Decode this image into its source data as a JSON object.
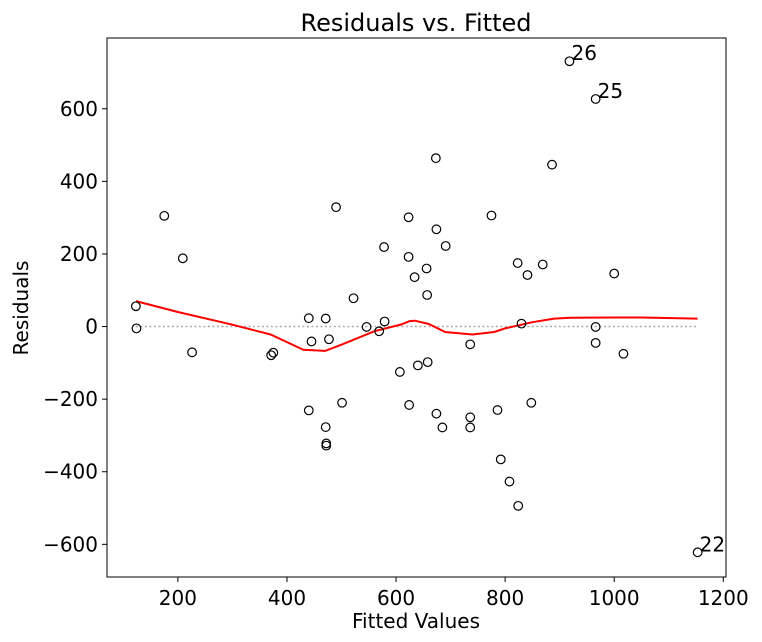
{
  "chart_data": {
    "type": "scatter",
    "title": "Residuals vs. Fitted",
    "xlabel": "Fitted Values",
    "ylabel": "Residuals",
    "xlim": [
      70,
      1205
    ],
    "ylim": [
      -690,
      795
    ],
    "xticks": [
      200,
      400,
      600,
      800,
      1000,
      1200
    ],
    "yticks": [
      -600,
      -400,
      -200,
      0,
      200,
      400,
      600
    ],
    "xtick_labels": [
      "200",
      "400",
      "600",
      "800",
      "1000",
      "1200"
    ],
    "ytick_labels": [
      "−600",
      "−400",
      "−200",
      "0",
      "200",
      "400",
      "600"
    ],
    "grid": false,
    "reference_line": {
      "y": 0,
      "style": "dotted",
      "color": "#aaaaaa"
    },
    "colors": {
      "points": "#000000",
      "smooth": "#ff0000"
    },
    "points": [
      {
        "x": 123,
        "y": 56
      },
      {
        "x": 124,
        "y": -5
      },
      {
        "x": 175,
        "y": 305
      },
      {
        "x": 209,
        "y": 188
      },
      {
        "x": 226,
        "y": -71
      },
      {
        "x": 371,
        "y": -79
      },
      {
        "x": 375,
        "y": -72
      },
      {
        "x": 440,
        "y": 23
      },
      {
        "x": 440,
        "y": -231
      },
      {
        "x": 445,
        "y": -41
      },
      {
        "x": 471,
        "y": 22
      },
      {
        "x": 471,
        "y": -277
      },
      {
        "x": 472,
        "y": -322
      },
      {
        "x": 472,
        "y": -328
      },
      {
        "x": 477,
        "y": -35
      },
      {
        "x": 490,
        "y": 329
      },
      {
        "x": 501,
        "y": -210
      },
      {
        "x": 522,
        "y": 78
      },
      {
        "x": 546,
        "y": -1
      },
      {
        "x": 569,
        "y": -13
      },
      {
        "x": 578,
        "y": 219
      },
      {
        "x": 579,
        "y": 14
      },
      {
        "x": 607,
        "y": -125
      },
      {
        "x": 623,
        "y": 301
      },
      {
        "x": 623,
        "y": 192
      },
      {
        "x": 624,
        "y": -216
      },
      {
        "x": 634,
        "y": 136
      },
      {
        "x": 640,
        "y": -107
      },
      {
        "x": 656,
        "y": 160
      },
      {
        "x": 657,
        "y": 87
      },
      {
        "x": 658,
        "y": -98
      },
      {
        "x": 673,
        "y": 464
      },
      {
        "x": 674,
        "y": 268
      },
      {
        "x": 674,
        "y": -240
      },
      {
        "x": 685,
        "y": -278
      },
      {
        "x": 691,
        "y": 222
      },
      {
        "x": 736,
        "y": -49
      },
      {
        "x": 736,
        "y": -250
      },
      {
        "x": 736,
        "y": -278
      },
      {
        "x": 775,
        "y": 306
      },
      {
        "x": 786,
        "y": -230
      },
      {
        "x": 792,
        "y": -366
      },
      {
        "x": 808,
        "y": -427
      },
      {
        "x": 823,
        "y": 175
      },
      {
        "x": 824,
        "y": -494
      },
      {
        "x": 830,
        "y": 8
      },
      {
        "x": 841,
        "y": 142
      },
      {
        "x": 848,
        "y": -210
      },
      {
        "x": 869,
        "y": 171
      },
      {
        "x": 886,
        "y": 446
      },
      {
        "x": 918,
        "y": 731
      },
      {
        "x": 966,
        "y": 627
      },
      {
        "x": 966,
        "y": -1
      },
      {
        "x": 966,
        "y": -45
      },
      {
        "x": 1000,
        "y": 146
      },
      {
        "x": 1017,
        "y": -75
      },
      {
        "x": 1153,
        "y": -622
      }
    ],
    "annotations": [
      {
        "label": "26",
        "x": 918,
        "y": 731
      },
      {
        "label": "25",
        "x": 966,
        "y": 627
      },
      {
        "label": "22",
        "x": 1153,
        "y": -622
      }
    ],
    "smooth_line": {
      "x": [
        123,
        200,
        300,
        370,
        430,
        470,
        500,
        560,
        610,
        625,
        635,
        660,
        690,
        740,
        780,
        800,
        850,
        890,
        920,
        1000,
        1050,
        1153
      ],
      "y": [
        70,
        40,
        5,
        -22,
        -64,
        -67,
        -50,
        -13,
        6,
        15,
        16,
        7,
        -15,
        -22,
        -15,
        -5,
        12,
        22,
        24,
        25,
        25,
        22
      ]
    }
  }
}
